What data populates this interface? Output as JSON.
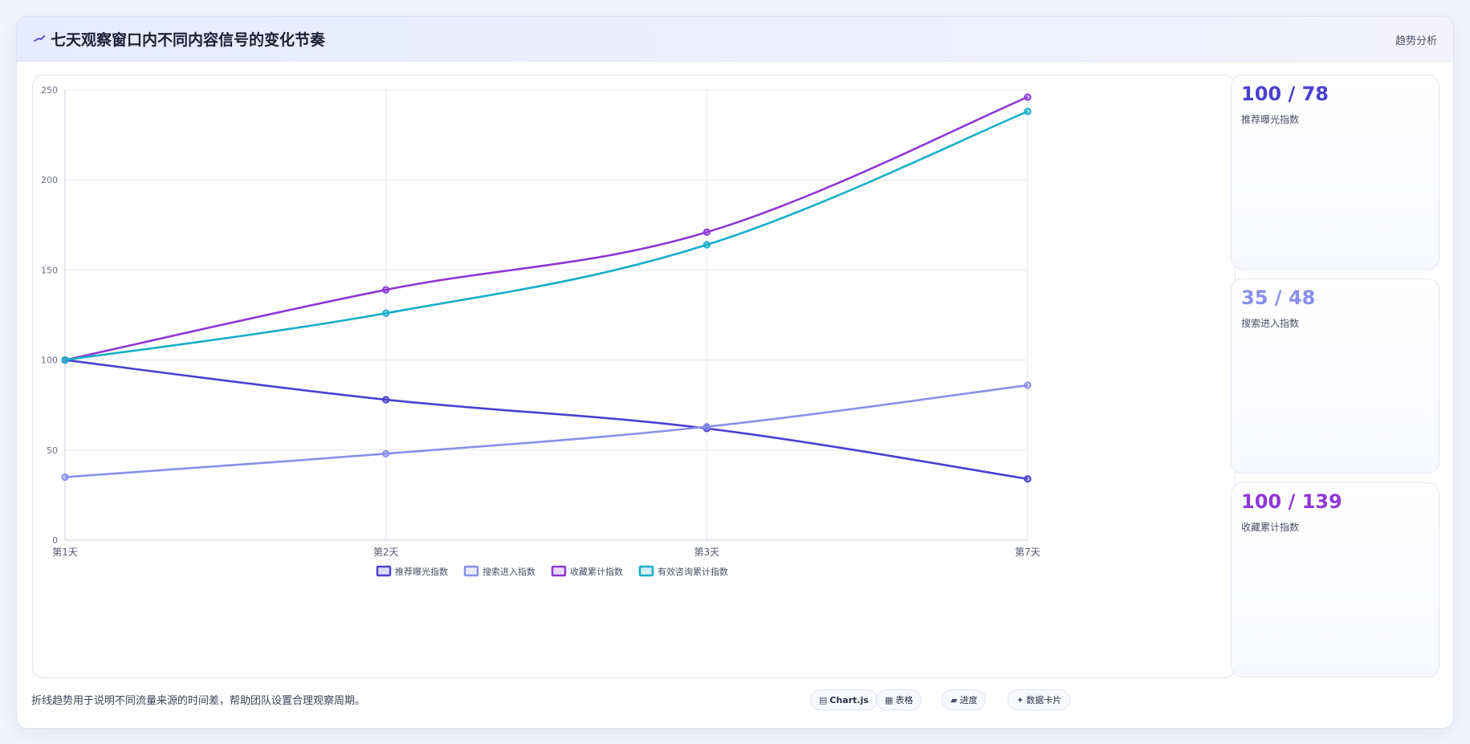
{
  "header": {
    "title": "七天观察窗口内不同内容信号的变化节奏",
    "tag": "趋势分析"
  },
  "chart_data": {
    "type": "line",
    "categories": [
      "第1天",
      "第2天",
      "第3天",
      "第7天"
    ],
    "ylim": [
      0,
      250
    ],
    "yticks": [
      0,
      50,
      100,
      150,
      200,
      250
    ],
    "grid": true,
    "legend_position": "bottom",
    "series": [
      {
        "name": "推荐曝光指数",
        "values": [
          100,
          78,
          62,
          34
        ],
        "color": "#4a40d0"
      },
      {
        "name": "搜索进入指数",
        "values": [
          35,
          48,
          63,
          86
        ],
        "color": "#8890ea"
      },
      {
        "name": "收藏累计指数",
        "values": [
          100,
          139,
          171,
          246
        ],
        "color": "#8e38d6"
      },
      {
        "name": "有效咨询累计指数",
        "values": [
          100,
          126,
          164,
          238
        ],
        "color": "#16aec8"
      }
    ]
  },
  "stats": [
    {
      "value": "100 / 78",
      "label": "推荐曝光指数",
      "color": "#4a40d0"
    },
    {
      "value": "35 / 48",
      "label": "搜索进入指数",
      "color": "#8890ea"
    },
    {
      "value": "100 / 139",
      "label": "收藏累计指数",
      "color": "#8e38d6"
    }
  ],
  "footer": {
    "note": "折线趋势用于说明不同流量来源的时间差，帮助团队设置合理观察周期。",
    "chips": [
      {
        "icon": "chart-icon",
        "glyph": "▤",
        "label": "Chart.js",
        "bold": true
      },
      {
        "icon": "table-icon",
        "glyph": "▦",
        "label": "表格",
        "bold": false
      },
      {
        "icon": "progress-icon",
        "glyph": "▰",
        "label": "进度",
        "bold": false
      },
      {
        "icon": "card-icon",
        "glyph": "✦",
        "label": "数据卡片",
        "bold": false
      }
    ]
  }
}
